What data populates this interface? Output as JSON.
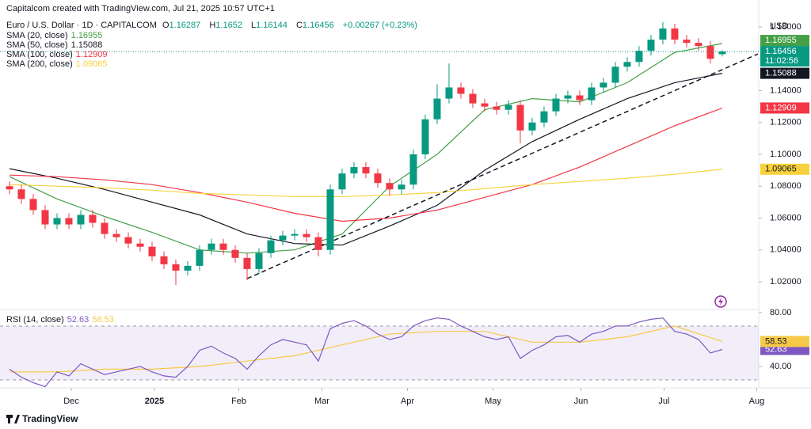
{
  "credit": "Capitalcom created with TradingView.com, Jul 21, 2025 10:57 UTC+1",
  "brand": "TradingView",
  "chart_data": {
    "type": "candlestick",
    "title": "Euro / U.S. Dollar · 1D · CAPITALCOM",
    "ohlc_labels": [
      "O",
      "H",
      "L",
      "C"
    ],
    "change": "+0.00267 (+0.23%)",
    "currency": "USD",
    "countdown": "11:02:56",
    "up_color": "#089981",
    "down_color": "#f23645",
    "candles": [
      [
        1.08,
        1.083,
        1.075,
        1.078
      ],
      [
        1.078,
        1.081,
        1.069,
        1.072
      ],
      [
        1.072,
        1.075,
        1.062,
        1.065
      ],
      [
        1.065,
        1.068,
        1.053,
        1.056
      ],
      [
        1.056,
        1.063,
        1.053,
        1.06
      ],
      [
        1.06,
        1.063,
        1.053,
        1.056
      ],
      [
        1.056,
        1.065,
        1.053,
        1.062
      ],
      [
        1.062,
        1.065,
        1.054,
        1.057
      ],
      [
        1.057,
        1.06,
        1.047,
        1.05
      ],
      [
        1.05,
        1.053,
        1.045,
        1.048
      ],
      [
        1.048,
        1.051,
        1.041,
        1.044
      ],
      [
        1.044,
        1.047,
        1.039,
        1.042
      ],
      [
        1.042,
        1.045,
        1.033,
        1.036
      ],
      [
        1.036,
        1.039,
        1.028,
        1.031
      ],
      [
        1.031,
        1.034,
        1.018,
        1.027
      ],
      [
        1.027,
        1.033,
        1.024,
        1.03
      ],
      [
        1.03,
        1.043,
        1.027,
        1.04
      ],
      [
        1.04,
        1.047,
        1.037,
        1.044
      ],
      [
        1.044,
        1.047,
        1.037,
        1.04
      ],
      [
        1.04,
        1.043,
        1.032,
        1.035
      ],
      [
        1.035,
        1.038,
        1.021,
        1.028
      ],
      [
        1.028,
        1.041,
        1.025,
        1.038
      ],
      [
        1.038,
        1.049,
        1.035,
        1.046
      ],
      [
        1.046,
        1.052,
        1.043,
        1.049
      ],
      [
        1.049,
        1.053,
        1.046,
        1.05
      ],
      [
        1.05,
        1.053,
        1.045,
        1.048
      ],
      [
        1.048,
        1.051,
        1.036,
        1.04
      ],
      [
        1.04,
        1.081,
        1.037,
        1.078
      ],
      [
        1.078,
        1.091,
        1.075,
        1.088
      ],
      [
        1.088,
        1.095,
        1.085,
        1.092
      ],
      [
        1.092,
        1.095,
        1.085,
        1.088
      ],
      [
        1.088,
        1.091,
        1.079,
        1.082
      ],
      [
        1.082,
        1.085,
        1.074,
        1.078
      ],
      [
        1.078,
        1.084,
        1.075,
        1.081
      ],
      [
        1.081,
        1.103,
        1.078,
        1.1
      ],
      [
        1.1,
        1.125,
        1.097,
        1.122
      ],
      [
        1.122,
        1.144,
        1.119,
        1.135
      ],
      [
        1.135,
        1.157,
        1.132,
        1.142
      ],
      [
        1.142,
        1.145,
        1.135,
        1.138
      ],
      [
        1.138,
        1.141,
        1.129,
        1.132
      ],
      [
        1.132,
        1.135,
        1.127,
        1.13
      ],
      [
        1.13,
        1.133,
        1.125,
        1.128
      ],
      [
        1.128,
        1.134,
        1.125,
        1.131
      ],
      [
        1.131,
        1.134,
        1.107,
        1.115
      ],
      [
        1.115,
        1.123,
        1.112,
        1.12
      ],
      [
        1.12,
        1.13,
        1.117,
        1.127
      ],
      [
        1.127,
        1.138,
        1.124,
        1.135
      ],
      [
        1.135,
        1.14,
        1.132,
        1.137
      ],
      [
        1.137,
        1.14,
        1.131,
        1.134
      ],
      [
        1.134,
        1.145,
        1.131,
        1.142
      ],
      [
        1.142,
        1.148,
        1.139,
        1.145
      ],
      [
        1.145,
        1.158,
        1.142,
        1.155
      ],
      [
        1.155,
        1.161,
        1.152,
        1.158
      ],
      [
        1.158,
        1.168,
        1.155,
        1.165
      ],
      [
        1.165,
        1.175,
        1.162,
        1.172
      ],
      [
        1.172,
        1.183,
        1.169,
        1.179
      ],
      [
        1.179,
        1.182,
        1.169,
        1.172
      ],
      [
        1.172,
        1.175,
        1.167,
        1.17
      ],
      [
        1.17,
        1.173,
        1.165,
        1.168
      ],
      [
        1.168,
        1.171,
        1.157,
        1.16
      ],
      [
        1.16287,
        1.1652,
        1.16144,
        1.16456
      ]
    ],
    "xlim": [
      -0.8,
      63.07
    ],
    "xticks": [
      {
        "value": 5.2,
        "label": "Dec"
      },
      {
        "value": 12.2,
        "label": "2025"
      },
      {
        "value": 19.3,
        "label": "Feb"
      },
      {
        "value": 26.3,
        "label": "Mar"
      },
      {
        "value": 33.5,
        "label": "Apr"
      },
      {
        "value": 40.7,
        "label": "May"
      },
      {
        "value": 48.1,
        "label": "Jun"
      },
      {
        "value": 55.1,
        "label": "Jul"
      },
      {
        "value": 62.9,
        "label": "Aug"
      }
    ],
    "ylim": [
      1.0031,
      1.1969
    ],
    "yticks": [
      {
        "value": 1.02,
        "label": "1.02000"
      },
      {
        "value": 1.04,
        "label": "1.04000"
      },
      {
        "value": 1.06,
        "label": "1.06000"
      },
      {
        "value": 1.08,
        "label": "1.08000"
      },
      {
        "value": 1.1,
        "label": "1.10000"
      },
      {
        "value": 1.12,
        "label": "1.12000"
      },
      {
        "value": 1.14,
        "label": "1.14000"
      },
      {
        "value": 1.16,
        "label": "1.16000"
      },
      {
        "value": 1.18,
        "label": "1.18000"
      }
    ],
    "sma_x": [
      0,
      4,
      8,
      12,
      16,
      20,
      24,
      28,
      32,
      36,
      40,
      44,
      48,
      52,
      56,
      60
    ],
    "series": [
      {
        "name": "SMA (20, close)",
        "color": "#43a047",
        "values": [
          1.086,
          1.072,
          1.061,
          1.051,
          1.04,
          1.038,
          1.04,
          1.05,
          1.08,
          1.1,
          1.128,
          1.135,
          1.133,
          1.145,
          1.164,
          1.16955
        ]
      },
      {
        "name": "SMA (50, close)",
        "color": "#131722",
        "values": [
          1.091,
          1.085,
          1.078,
          1.07,
          1.062,
          1.05,
          1.044,
          1.043,
          1.055,
          1.068,
          1.09,
          1.108,
          1.122,
          1.135,
          1.145,
          1.15088
        ]
      },
      {
        "name": "SMA (100, close)",
        "color": "#f23645",
        "values": [
          1.087,
          1.086,
          1.084,
          1.081,
          1.076,
          1.07,
          1.063,
          1.058,
          1.06,
          1.065,
          1.073,
          1.081,
          1.092,
          1.105,
          1.118,
          1.12909
        ]
      },
      {
        "name": "SMA (200, close)",
        "color": "#f7d23d",
        "values": [
          1.081,
          1.08,
          1.079,
          1.0775,
          1.0755,
          1.0745,
          1.0735,
          1.0735,
          1.0745,
          1.076,
          1.0785,
          1.081,
          1.083,
          1.085,
          1.0875,
          1.09065
        ]
      }
    ],
    "trendline": {
      "x": [
        20,
        63
      ],
      "values": [
        1.022,
        1.163
      ],
      "color": "#131722"
    },
    "rsi": {
      "name": "RSI (14, close)",
      "color": "#7e57c2",
      "values": [
        38,
        32,
        28,
        25,
        36,
        33,
        42,
        38,
        34,
        36,
        38,
        40,
        36,
        33,
        32,
        40,
        52,
        55,
        50,
        46,
        38,
        48,
        56,
        60,
        58,
        56,
        44,
        68,
        72,
        74,
        70,
        64,
        60,
        62,
        70,
        74,
        76,
        75,
        70,
        66,
        62,
        60,
        62,
        46,
        52,
        56,
        62,
        63,
        58,
        64,
        66,
        70,
        70,
        73,
        75,
        76,
        66,
        64,
        60,
        50,
        52.63
      ],
      "ma": {
        "color": "#f7c948",
        "values": [
          36,
          36,
          38,
          38,
          40,
          44,
          48,
          56,
          64,
          66,
          66,
          58,
          58,
          62,
          70,
          58.53
        ]
      },
      "band": [
        30,
        70
      ],
      "ylim": [
        24.1,
        82.9
      ],
      "yticks": [
        {
          "value": 40,
          "label": "40.00"
        },
        {
          "value": 80,
          "label": "80.00"
        }
      ]
    }
  }
}
